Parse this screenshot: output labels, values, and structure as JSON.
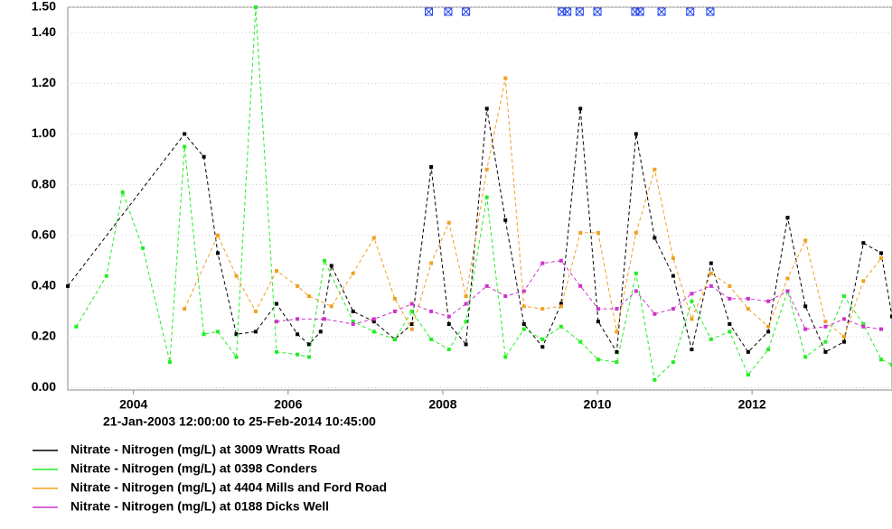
{
  "chart_data": {
    "type": "line",
    "subtitle": "21-Jan-2003 12:00:00 to 25-Feb-2014 10:45:00",
    "xlim": [
      2003.15,
      2013.81
    ],
    "xticks": [
      2004,
      2006,
      2008,
      2010,
      2012
    ],
    "ylim": [
      -0.01,
      1.5
    ],
    "yticks": [
      {
        "value": 0,
        "label": "0.00"
      },
      {
        "value": 0.2,
        "label": "0.20"
      },
      {
        "value": 0.4,
        "label": "0.40"
      },
      {
        "value": 0.6,
        "label": "0.60"
      },
      {
        "value": 0.8,
        "label": "0.80"
      },
      {
        "value": 1,
        "label": "1.00"
      },
      {
        "value": 1.2,
        "label": "1.20"
      },
      {
        "value": 1.4,
        "label": "1.40"
      },
      {
        "value": 1.5,
        "label": "1.50"
      }
    ],
    "grid": true,
    "legend": "bottom",
    "flag_color": "#2244ee",
    "flag_x": [
      2007.82,
      2008.07,
      2008.3,
      2009.54,
      2009.61,
      2009.77,
      2010.0,
      2010.49,
      2010.55,
      2010.83,
      2011.2,
      2011.46
    ],
    "series": [
      {
        "name": "Nitrate - Nitrogen (mg/L) at 3009 Wratts Road",
        "color": "#000000",
        "x": [
          2003.15,
          2004.66,
          2004.91,
          2005.09,
          2005.33,
          2005.58,
          2005.85,
          2006.12,
          2006.27,
          2006.42,
          2006.56,
          2006.84,
          2007.11,
          2007.38,
          2007.6,
          2007.85,
          2008.08,
          2008.3,
          2008.57,
          2008.81,
          2009.05,
          2009.29,
          2009.53,
          2009.78,
          2010.01,
          2010.25,
          2010.5,
          2010.74,
          2010.98,
          2011.22,
          2011.47,
          2011.71,
          2011.95,
          2012.21,
          2012.46,
          2012.69,
          2012.95,
          2013.19,
          2013.44,
          2013.67,
          2013.81
        ],
        "values": [
          0.4,
          1.0,
          0.91,
          0.53,
          0.21,
          0.22,
          0.33,
          0.21,
          0.17,
          0.22,
          0.48,
          0.3,
          0.26,
          0.19,
          0.25,
          0.87,
          0.25,
          0.17,
          1.1,
          0.66,
          0.25,
          0.16,
          0.33,
          1.1,
          0.26,
          0.14,
          1.0,
          0.59,
          0.44,
          0.15,
          0.49,
          0.25,
          0.14,
          0.22,
          0.67,
          0.32,
          0.14,
          0.18,
          0.57,
          0.53,
          0.28
        ]
      },
      {
        "name": "Nitrate - Nitrogen (mg/L) at 0398 Conders",
        "color": "#22ee22",
        "x": [
          2003.26,
          2003.65,
          2003.86,
          2004.12,
          2004.47,
          2004.66,
          2004.91,
          2005.09,
          2005.33,
          2005.58,
          2005.85,
          2006.12,
          2006.27,
          2006.47,
          2006.84,
          2007.11,
          2007.38,
          2007.6,
          2007.85,
          2008.08,
          2008.3,
          2008.57,
          2008.81,
          2009.05,
          2009.29,
          2009.53,
          2009.78,
          2010.01,
          2010.25,
          2010.5,
          2010.74,
          2010.98,
          2011.22,
          2011.47,
          2011.71,
          2011.95,
          2012.21,
          2012.46,
          2012.69,
          2012.95,
          2013.19,
          2013.44,
          2013.67,
          2013.81
        ],
        "values": [
          0.24,
          0.44,
          0.77,
          0.55,
          0.1,
          0.95,
          0.21,
          0.22,
          0.12,
          1.5,
          0.14,
          0.13,
          0.12,
          0.5,
          0.26,
          0.22,
          0.19,
          0.3,
          0.19,
          0.15,
          0.26,
          0.75,
          0.12,
          0.23,
          0.19,
          0.24,
          0.18,
          0.11,
          0.1,
          0.45,
          0.03,
          0.1,
          0.34,
          0.19,
          0.22,
          0.05,
          0.15,
          0.38,
          0.12,
          0.18,
          0.36,
          0.25,
          0.11,
          0.09
        ]
      },
      {
        "name": "Nitrate - Nitrogen (mg/L) at 4404 Mills and Ford Road",
        "color": "#f0a020",
        "x": [
          2004.66,
          2005.09,
          2005.33,
          2005.58,
          2005.85,
          2006.12,
          2006.27,
          2006.56,
          2006.84,
          2007.11,
          2007.38,
          2007.6,
          2007.85,
          2008.08,
          2008.3,
          2008.57,
          2008.81,
          2009.05,
          2009.29,
          2009.53,
          2009.78,
          2010.01,
          2010.25,
          2010.5,
          2010.74,
          2010.98,
          2011.22,
          2011.47,
          2011.71,
          2011.95,
          2012.21,
          2012.46,
          2012.69,
          2012.95,
          2013.19,
          2013.44,
          2013.67
        ],
        "values": [
          0.31,
          0.6,
          0.44,
          0.3,
          0.46,
          0.4,
          0.36,
          0.32,
          0.45,
          0.59,
          0.35,
          0.23,
          0.49,
          0.65,
          0.36,
          0.86,
          1.22,
          0.32,
          0.31,
          0.32,
          0.61,
          0.61,
          0.22,
          0.61,
          0.86,
          0.51,
          0.27,
          0.45,
          0.4,
          0.31,
          0.24,
          0.43,
          0.58,
          0.26,
          0.2,
          0.42,
          0.51
        ]
      },
      {
        "name": "Nitrate - Nitrogen (mg/L) at 0188 Dicks Well",
        "color": "#cc33cc",
        "x": [
          2005.85,
          2006.12,
          2006.47,
          2006.84,
          2007.11,
          2007.38,
          2007.6,
          2007.85,
          2008.08,
          2008.3,
          2008.57,
          2008.81,
          2009.05,
          2009.29,
          2009.53,
          2009.78,
          2010.01,
          2010.25,
          2010.5,
          2010.74,
          2010.98,
          2011.22,
          2011.47,
          2011.71,
          2011.95,
          2012.21,
          2012.46,
          2012.69,
          2012.95,
          2013.19,
          2013.44,
          2013.67
        ],
        "values": [
          0.26,
          0.27,
          0.27,
          0.25,
          0.27,
          0.3,
          0.33,
          0.3,
          0.28,
          0.33,
          0.4,
          0.36,
          0.38,
          0.49,
          0.5,
          0.4,
          0.31,
          0.31,
          0.38,
          0.29,
          0.31,
          0.37,
          0.4,
          0.35,
          0.35,
          0.34,
          0.38,
          0.23,
          0.24,
          0.27,
          0.24,
          0.23
        ]
      }
    ]
  }
}
